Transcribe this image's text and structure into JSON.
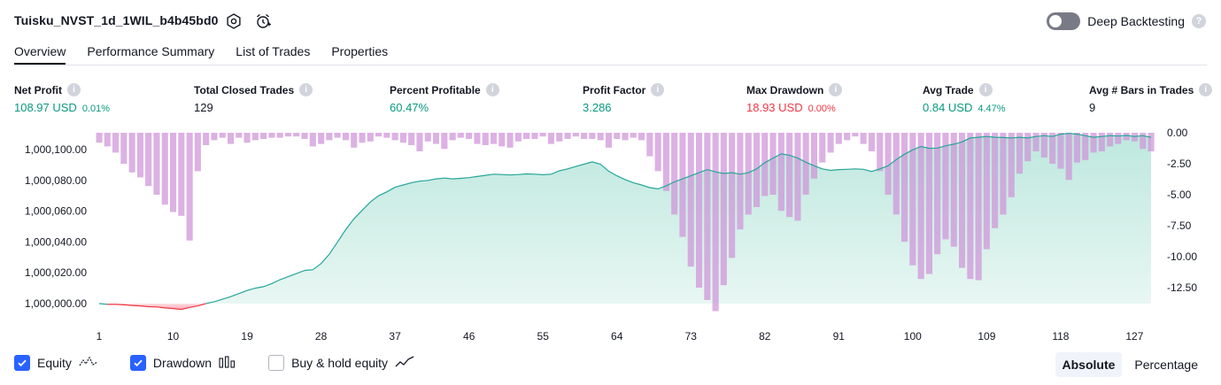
{
  "header": {
    "title": "Tuisku_NVST_1d_1WIL_b4b45bd0",
    "deep_backtesting_label": "Deep Backtesting",
    "deep_backtesting_enabled": false,
    "help_glyph": "?"
  },
  "tabs": [
    "Overview",
    "Performance Summary",
    "List of Trades",
    "Properties"
  ],
  "active_tab": "Overview",
  "metrics": [
    {
      "label": "Net Profit",
      "value": "108.97 USD",
      "pct": "0.01%",
      "color": "green"
    },
    {
      "label": "Total Closed Trades",
      "value": "129",
      "pct": "",
      "color": "dark"
    },
    {
      "label": "Percent Profitable",
      "value": "60.47%",
      "pct": "",
      "color": "green"
    },
    {
      "label": "Profit Factor",
      "value": "3.286",
      "pct": "",
      "color": "green"
    },
    {
      "label": "Max Drawdown",
      "value": "18.93 USD",
      "pct": "0.00%",
      "color": "red"
    },
    {
      "label": "Avg Trade",
      "value": "0.84 USD",
      "pct": "4.47%",
      "color": "green"
    },
    {
      "label": "Avg # Bars in Trades",
      "value": "9",
      "pct": "",
      "color": "dark"
    }
  ],
  "chart_data": {
    "type": "area",
    "xlabel": "",
    "x_ticks": [
      "1",
      "10",
      "19",
      "28",
      "37",
      "46",
      "55",
      "64",
      "73",
      "82",
      "91",
      "100",
      "109",
      "118",
      "127"
    ],
    "y_left": {
      "label": "",
      "ticks": [
        "1,000,100.00",
        "1,000,080.00",
        "1,000,060.00",
        "1,000,040.00",
        "1,000,020.00",
        "1,000,000.00"
      ],
      "range": [
        999999.0,
        1000110.0
      ]
    },
    "y_right": {
      "label": "",
      "ticks": [
        "0.00",
        "-2.50",
        "-5.00",
        "-7.50",
        "-10.00",
        "-12.50"
      ],
      "range": [
        -14.6,
        0.6
      ]
    },
    "series": [
      {
        "name": "Equity",
        "kind": "area",
        "line_color_above": "#26a69a",
        "line_color_below": "#f23645",
        "baseline": 1000000.0,
        "values": [
          1000000.0,
          999999.5,
          999999.5,
          999999.2,
          999998.8,
          999998.5,
          999998.0,
          999997.8,
          999997.2,
          999996.8,
          999996.2,
          999997.5,
          999998.5,
          1000000.0,
          1000001.2,
          1000002.8,
          1000004.5,
          1000006.5,
          1000008.5,
          1000010.0,
          1000011.0,
          1000013.0,
          1000015.5,
          1000017.5,
          1000019.5,
          1000021.5,
          1000022.0,
          1000026.0,
          1000032.0,
          1000040.0,
          1000048.0,
          1000055.0,
          1000060.5,
          1000066.0,
          1000070.0,
          1000072.5,
          1000075.5,
          1000077.0,
          1000078.5,
          1000079.5,
          1000080.0,
          1000081.0,
          1000081.5,
          1000081.0,
          1000081.3,
          1000081.8,
          1000082.5,
          1000083.3,
          1000084.0,
          1000083.8,
          1000083.5,
          1000083.8,
          1000084.2,
          1000084.0,
          1000083.7,
          1000084.0,
          1000086.2,
          1000087.5,
          1000089.0,
          1000090.5,
          1000092.0,
          1000090.5,
          1000086.0,
          1000083.0,
          1000080.5,
          1000078.5,
          1000077.0,
          1000075.3,
          1000074.5,
          1000076.5,
          1000079.0,
          1000081.0,
          1000083.0,
          1000085.0,
          1000087.0,
          1000085.5,
          1000084.5,
          1000085.0,
          1000084.0,
          1000085.0,
          1000087.5,
          1000091.5,
          1000094.5,
          1000097.2,
          1000096.3,
          1000094.5,
          1000091.8,
          1000089.5,
          1000087.5,
          1000086.5,
          1000087.0,
          1000087.2,
          1000087.5,
          1000087.2,
          1000085.8,
          1000087.5,
          1000089.5,
          1000093.5,
          1000097.0,
          1000099.8,
          1000102.0,
          1000100.8,
          1000101.0,
          1000102.5,
          1000103.5,
          1000105.0,
          1000107.5,
          1000108.0,
          1000108.5,
          1000108.0,
          1000107.8,
          1000107.5,
          1000108.0,
          1000107.5,
          1000108.5,
          1000109.0,
          1000108.5,
          1000110.0,
          1000110.5,
          1000110.0,
          1000109.0,
          1000108.0,
          1000108.5,
          1000109.0,
          1000108.8,
          1000109.2,
          1000108.5,
          1000109.0,
          1000108.0
        ]
      },
      {
        "name": "Drawdown",
        "kind": "bar",
        "color": "#ce93d8",
        "values": [
          -0.8,
          -1.1,
          -1.6,
          -2.5,
          -3.2,
          -3.6,
          -4.3,
          -5.0,
          -5.8,
          -6.4,
          -6.7,
          -8.7,
          -3.1,
          -1.0,
          -0.6,
          -0.4,
          -0.9,
          -0.4,
          -0.8,
          -0.6,
          -0.5,
          -0.4,
          -0.4,
          -0.3,
          -0.3,
          -0.5,
          -1.1,
          -0.9,
          -0.6,
          -0.4,
          -0.6,
          -1.2,
          -0.8,
          -0.7,
          -0.3,
          -0.4,
          -0.6,
          -0.8,
          -1.0,
          -1.5,
          -0.7,
          -0.9,
          -1.3,
          -0.6,
          -0.4,
          -0.5,
          -0.9,
          -1.0,
          -0.9,
          -1.1,
          -1.2,
          -0.7,
          -0.5,
          -0.5,
          -0.3,
          -0.9,
          -0.7,
          -0.5,
          -0.3,
          -0.5,
          -0.5,
          -0.6,
          -1.2,
          -0.5,
          -0.6,
          -0.4,
          -0.6,
          -1.9,
          -3.1,
          -4.7,
          -6.6,
          -8.4,
          -10.8,
          -12.5,
          -13.5,
          -14.4,
          -12.3,
          -10.1,
          -7.8,
          -6.6,
          -6.0,
          -5.1,
          -5.0,
          -6.3,
          -6.8,
          -7.1,
          -5.0,
          -3.7,
          -2.4,
          -1.6,
          -0.9,
          -0.6,
          -0.3,
          -0.9,
          -1.5,
          -3.1,
          -5.0,
          -6.6,
          -8.8,
          -10.7,
          -11.8,
          -11.4,
          -9.8,
          -8.6,
          -9.2,
          -10.9,
          -11.8,
          -11.9,
          -9.4,
          -7.7,
          -6.6,
          -5.2,
          -3.3,
          -2.3,
          -1.5,
          -2.0,
          -2.5,
          -2.9,
          -3.8,
          -2.4,
          -2.2,
          -1.6,
          -1.5,
          -1.1,
          -0.9,
          -0.6,
          -0.7,
          -1.3,
          -1.5
        ]
      },
      {
        "name": "Buy & hold equity",
        "kind": "line",
        "values": []
      }
    ],
    "legend": [
      {
        "name": "Equity",
        "checked": true
      },
      {
        "name": "Drawdown",
        "checked": true
      },
      {
        "name": "Buy & hold equity",
        "checked": false
      }
    ],
    "grid": false
  },
  "modes": [
    "Absolute",
    "Percentage"
  ],
  "active_mode": "Absolute",
  "colors": {
    "accent": "#2962ff",
    "profit": "#089981",
    "loss": "#f23645",
    "drawdown": "#ce93d8",
    "equity_line": "#26a69a"
  },
  "icons": [
    "settings-icon",
    "alert-icon",
    "info-icon",
    "equity-line-icon",
    "drawdown-bars-icon",
    "buy-hold-line-icon",
    "checkmark-icon"
  ]
}
